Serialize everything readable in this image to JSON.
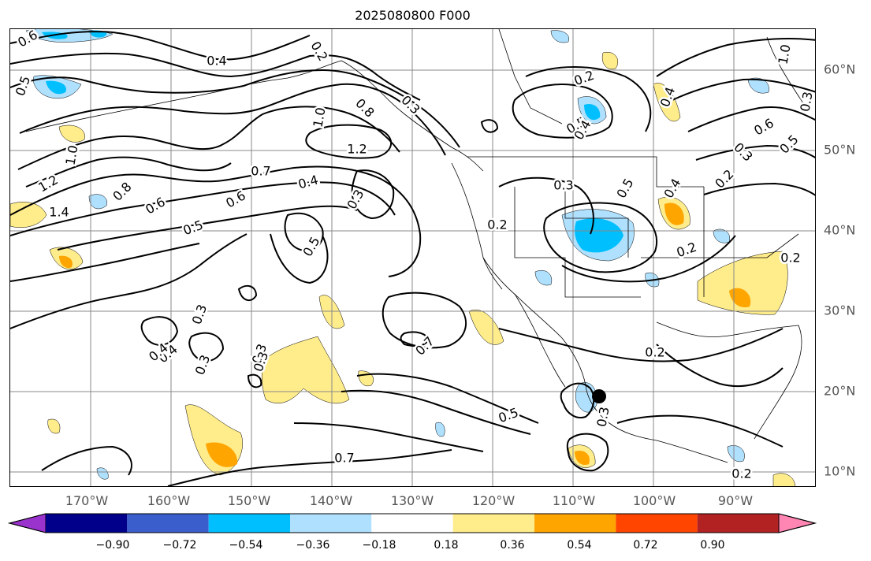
{
  "title": "2025080800 F000",
  "map": {
    "longitude_labels": [
      "170°W",
      "160°W",
      "150°W",
      "140°W",
      "130°W",
      "120°W",
      "110°W",
      "100°W",
      "90°W"
    ],
    "latitude_labels": [
      "60°N",
      "50°N",
      "40°N",
      "30°N",
      "20°N",
      "10°N"
    ],
    "contour_labels": [
      "0.6",
      "0.5",
      "1.0",
      "1.2",
      "1.4",
      "0.8",
      "0.6",
      "0.5",
      "0.4",
      "0.2",
      "1.0",
      "0.8",
      "0.3",
      "1.2",
      "0.7",
      "0.4",
      "0.6",
      "0.3",
      "0.5",
      "0.3",
      "0.3",
      "0.4",
      "0.7",
      "0.5",
      "0.2",
      "0.2",
      "0.5",
      "0.4",
      "0.3",
      "0.5",
      "0.4",
      "0.2",
      "0.4",
      "0.6",
      "0.3",
      "0.5",
      "1.0",
      "0.3",
      "0.2",
      "0.2",
      "0.3",
      "0.2",
      "0.7",
      "0.3",
      "0.3",
      "0.4",
      "0.2"
    ],
    "colors": {
      "contour": "#000000",
      "grid": "#888888"
    },
    "marker": "black-dot"
  },
  "colorbar": {
    "tick_labels": [
      "−0.90",
      "−0.72",
      "−0.54",
      "−0.36",
      "−0.18",
      "0.18",
      "0.36",
      "0.54",
      "0.72",
      "0.90"
    ],
    "colors": [
      "#9a32cd",
      "#00008b",
      "#3a5fcd",
      "#00bfff",
      "#afe1ff",
      "#ffffff",
      "#ffec8b",
      "#ffa500",
      "#ff4500",
      "#b22222",
      "#ff86b2"
    ]
  }
}
